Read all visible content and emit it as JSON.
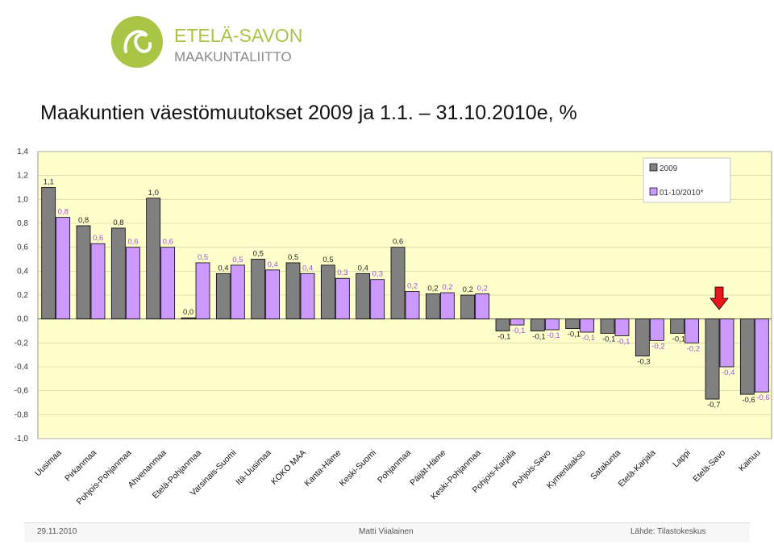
{
  "logo": {
    "line1": "ETELÄ-SAVON",
    "line2": "MAAKUNTALIITTO"
  },
  "title": "Maakuntien väestömuutokset 2009 ja 1.1. – 31.10.2010e, %",
  "footer": {
    "date": "29.11.2010",
    "author": "Matti Viialainen",
    "source": "Lähde: Tilastokeskus"
  },
  "colors": {
    "s2009": "#808080",
    "s2010": "#cc99ff",
    "plot_bg": "#ffffcc",
    "accent": "#e8151b",
    "logo_green": "#a8c545",
    "logo_gray": "#8a8a8a"
  },
  "chart_data": {
    "type": "bar",
    "categories": [
      "Uusimaa",
      "Pirkanmaa",
      "Pohjois-Pohjanmaa",
      "Ahvenanmaa",
      "Etelä-Pohjanmaa",
      "Varsinais-Suomi",
      "Itä-Uusimaa",
      "KOKO MAA",
      "Kanta-Häme",
      "Keski-Suomi",
      "Pohjanmaa",
      "Päijät-Häme",
      "Keski-Pohjanmaa",
      "Pohjois-Karjala",
      "Pohjois-Savo",
      "Kymenlaakso",
      "Satakunta",
      "Etelä-Karjala",
      "Lappi",
      "Etelä-Savo",
      "Kainuu"
    ],
    "series": [
      {
        "name": "2009",
        "values": [
          1.1,
          0.78,
          0.76,
          1.01,
          0.01,
          0.38,
          0.5,
          0.47,
          0.45,
          0.38,
          0.6,
          0.21,
          0.2,
          -0.1,
          -0.1,
          -0.08,
          -0.12,
          -0.31,
          -0.12,
          -0.67,
          -0.63
        ],
        "labels": [
          "1,1",
          "0,8",
          "0,8",
          "1,0",
          "0,0",
          "0,4",
          "0,5",
          "0,5",
          "0,5",
          "0,4",
          "0,6",
          "0,2",
          "0,2",
          "-0,1",
          "-0,1",
          "-0,1",
          "-0,1",
          "-0,3",
          "-0,1",
          "-0,7",
          "-0,6"
        ]
      },
      {
        "name": "01-10/2010*",
        "values": [
          0.85,
          0.63,
          0.6,
          0.6,
          0.47,
          0.45,
          0.41,
          0.38,
          0.34,
          0.33,
          0.23,
          0.22,
          0.21,
          -0.05,
          -0.09,
          -0.11,
          -0.14,
          -0.18,
          -0.2,
          -0.4,
          -0.61
        ],
        "labels": [
          "0,8",
          "0,6",
          "0,6",
          "0,6",
          "0,5",
          "0,5",
          "0,4",
          "0,4",
          "0,3",
          "0,3",
          "0,2",
          "0,2",
          "0,2",
          "-0,1",
          "-0,1",
          "-0,1",
          "-0,1",
          "-0,2",
          "-0,2",
          "-0,4",
          "-0,6"
        ]
      }
    ],
    "yticks": [
      "1,4",
      "1,2",
      "1,0",
      "0,8",
      "0,6",
      "0,4",
      "0,2",
      "0,0",
      "-0,2",
      "-0,4",
      "-0,6",
      "-0,8",
      "-1,0"
    ],
    "ylim": [
      -1.0,
      1.4
    ],
    "highlight_category": "Etelä-Savo",
    "legend": "top-right",
    "grid": true
  }
}
